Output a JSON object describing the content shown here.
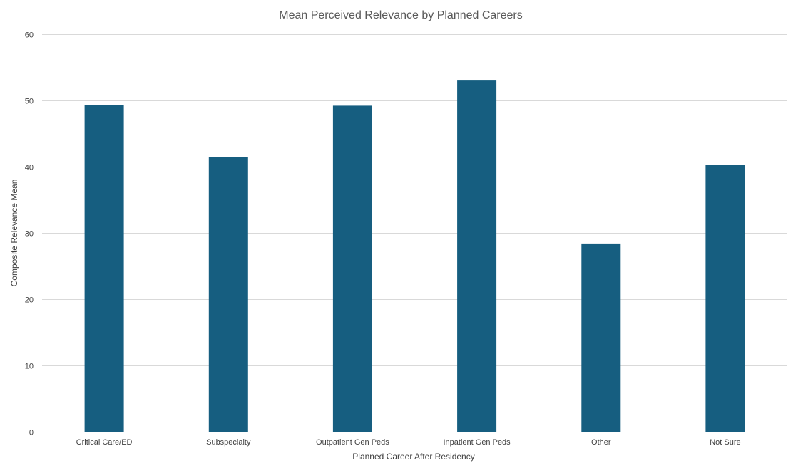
{
  "chart_data": {
    "type": "bar",
    "title": "Mean Perceived Relevance by Planned Careers",
    "xlabel": "Planned Career After Residency",
    "ylabel": "Composite Relevance Mean",
    "categories": [
      "Critical Care/ED",
      "Subspecialty",
      "Outpatient Gen Peds",
      "Inpatient Gen Peds",
      "Other",
      "Not Sure"
    ],
    "values": [
      49.3,
      41.4,
      49.2,
      53.0,
      28.4,
      40.3
    ],
    "ylim": [
      0,
      60
    ],
    "yticks": [
      0,
      10,
      20,
      30,
      40,
      50,
      60
    ],
    "grid": true,
    "legend": "none",
    "bar_color": "#165e80"
  }
}
